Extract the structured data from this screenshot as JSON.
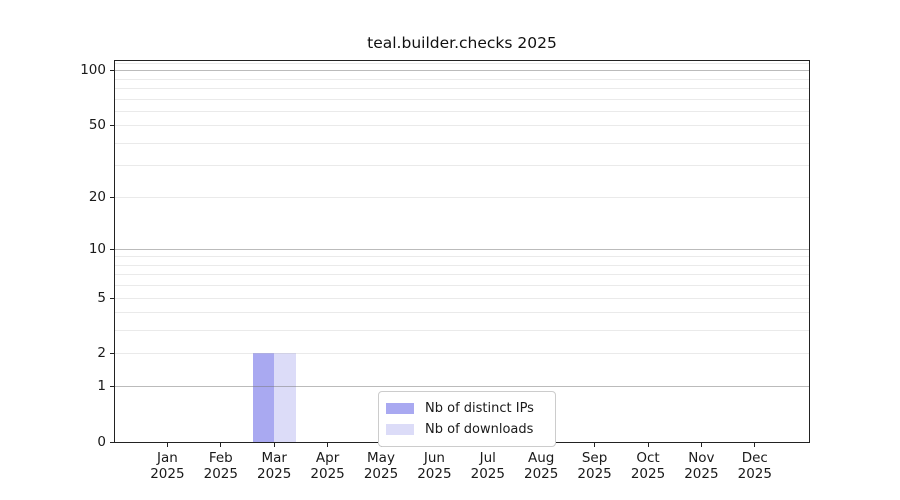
{
  "chart_data": {
    "type": "bar",
    "title": "teal.builder.checks 2025",
    "categories": [
      "Jan 2025",
      "Feb 2025",
      "Mar 2025",
      "Apr 2025",
      "May 2025",
      "Jun 2025",
      "Jul 2025",
      "Aug 2025",
      "Sep 2025",
      "Oct 2025",
      "Nov 2025",
      "Dec 2025"
    ],
    "series": [
      {
        "name": "Nb of distinct IPs",
        "key": "distinct-ips",
        "color": "#a9a9f1",
        "values": [
          0,
          0,
          2,
          0,
          0,
          0,
          0,
          0,
          0,
          0,
          0,
          0
        ]
      },
      {
        "name": "Nb of downloads",
        "key": "downloads",
        "color": "#dcdcf8",
        "values": [
          0,
          0,
          2,
          0,
          0,
          0,
          0,
          0,
          0,
          0,
          0,
          0
        ]
      }
    ],
    "xlabel": "",
    "ylabel": "",
    "yscale": "log1p",
    "yticks": [
      0,
      1,
      2,
      5,
      10,
      20,
      50,
      100
    ],
    "ylim": [
      0,
      115
    ],
    "grid": {
      "on": true,
      "major_lines": [
        1,
        10,
        100
      ],
      "minor_lines": [
        2,
        3,
        4,
        5,
        6,
        7,
        8,
        9,
        20,
        30,
        40,
        50,
        60,
        70,
        80,
        90,
        110
      ],
      "major_color": "rgba(120,120,120,0.50)",
      "minor_color": "rgba(185,185,185,0.30)"
    },
    "legend_position": "lower center (inside plot)"
  },
  "colors": {
    "distinct_ips_bar": "#a9a9f1",
    "downloads_bar": "#dcdcf8",
    "axis": "#222222",
    "legend_border": "#cccccc",
    "background": "#ffffff"
  }
}
